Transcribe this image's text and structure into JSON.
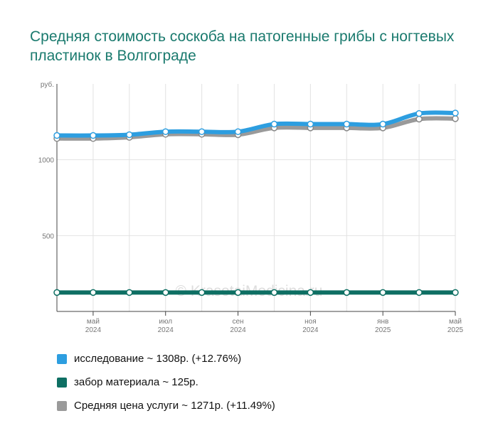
{
  "title": "Средняя стоимость соскоба на патогенные грибы с ногтевых пластинок в Волгограде",
  "watermark": "© KrasotaiMedicina.ru",
  "legend": [
    {
      "text": "исследование ~ 1308р. (+12.76%)",
      "color": "#2d9ee0"
    },
    {
      "text": "забор материала ~ 125р.",
      "color": "#0e6f63"
    },
    {
      "text": "Средняя цена услуги ~ 1271р. (+11.49%)",
      "color": "#9a9a9a"
    }
  ],
  "chart_data": {
    "type": "line",
    "unit_label": "руб.",
    "ylim": [
      0,
      1500
    ],
    "yticks": [
      500,
      1000
    ],
    "grid": true,
    "xtick_labels": [
      {
        "index": 1,
        "line1": "май",
        "line2": "2024"
      },
      {
        "index": 3,
        "line1": "июл",
        "line2": "2024"
      },
      {
        "index": 5,
        "line1": "сен",
        "line2": "2024"
      },
      {
        "index": 7,
        "line1": "ноя",
        "line2": "2024"
      },
      {
        "index": 9,
        "line1": "янв",
        "line2": "2025"
      },
      {
        "index": 11,
        "line1": "май",
        "line2": "2025"
      }
    ],
    "series": [
      {
        "name": "Средняя цена услуги",
        "color": "#9a9a9a",
        "values": [
          1140,
          1140,
          1148,
          1168,
          1168,
          1165,
          1210,
          1210,
          1210,
          1210,
          1268,
          1271
        ]
      },
      {
        "name": "исследование",
        "color": "#2d9ee0",
        "values": [
          1160,
          1160,
          1165,
          1185,
          1185,
          1185,
          1235,
          1235,
          1235,
          1235,
          1305,
          1308
        ]
      },
      {
        "name": "забор материала",
        "color": "#0e6f63",
        "values": [
          125,
          125,
          125,
          125,
          125,
          125,
          125,
          125,
          125,
          125,
          125,
          125
        ]
      }
    ]
  }
}
